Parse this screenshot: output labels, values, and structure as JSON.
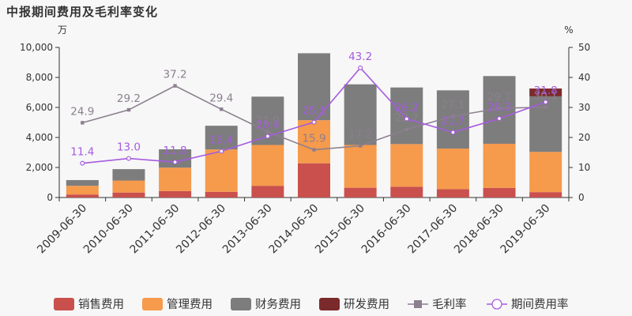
{
  "title": "中报期间费用及毛利率变化",
  "chart_data": {
    "type": "bar",
    "title": "中报期间费用及毛利率变化",
    "left_unit": "万",
    "right_unit": "%",
    "ylim_left": [
      0,
      10000
    ],
    "ylim_right": [
      0,
      50
    ],
    "left_ticks": [
      "0",
      "2,000",
      "4,000",
      "6,000",
      "8,000",
      "10,000"
    ],
    "right_ticks": [
      "0",
      "10",
      "20",
      "30",
      "40",
      "50"
    ],
    "categories": [
      "2009-06-30",
      "2010-06-30",
      "2011-06-30",
      "2012-06-30",
      "2013-06-30",
      "2014-06-30",
      "2015-06-30",
      "2016-06-30",
      "2017-06-30",
      "2018-06-30",
      "2019-06-30"
    ],
    "stacked_series": [
      {
        "name": "销售费用",
        "color": "#c9504d",
        "values": [
          200,
          330,
          430,
          380,
          780,
          2280,
          650,
          720,
          560,
          640,
          360
        ]
      },
      {
        "name": "管理费用",
        "color": "#f69a4c",
        "values": [
          580,
          800,
          1560,
          2820,
          2720,
          2870,
          2850,
          2840,
          2700,
          2940,
          2680
        ]
      },
      {
        "name": "财务费用",
        "color": "#7d7d7d",
        "values": [
          380,
          760,
          1220,
          1580,
          3220,
          4460,
          4040,
          3770,
          3880,
          4510,
          3700
        ]
      },
      {
        "name": "研发费用",
        "color": "#7b2a2c",
        "values": [
          0,
          0,
          0,
          0,
          0,
          0,
          0,
          0,
          0,
          0,
          520
        ]
      }
    ],
    "line_series": [
      {
        "name": "毛利率",
        "color": "#8c7f8f",
        "marker": "square",
        "values": [
          24.9,
          29.2,
          37.2,
          29.4,
          21.9,
          15.9,
          17.2,
          22.7,
          27.1,
          29.7,
          30.1
        ],
        "labels": [
          "24.9",
          "29.2",
          "37.2",
          "29.4",
          "21.9",
          "15.9",
          "17.2",
          "22.7",
          "27.1",
          "29.7",
          "30.1"
        ]
      },
      {
        "name": "期间费用率",
        "color": "#a65be0",
        "marker": "circle",
        "values": [
          11.4,
          13.0,
          11.8,
          15.4,
          20.4,
          25.1,
          43.2,
          26.2,
          21.7,
          26.3,
          31.8
        ],
        "labels": [
          "11.4",
          "13.0",
          "11.8",
          "15.4",
          "20.4",
          "25.1",
          "43.2",
          "26.2",
          "21.7",
          "26.3",
          "31.8"
        ]
      }
    ]
  }
}
